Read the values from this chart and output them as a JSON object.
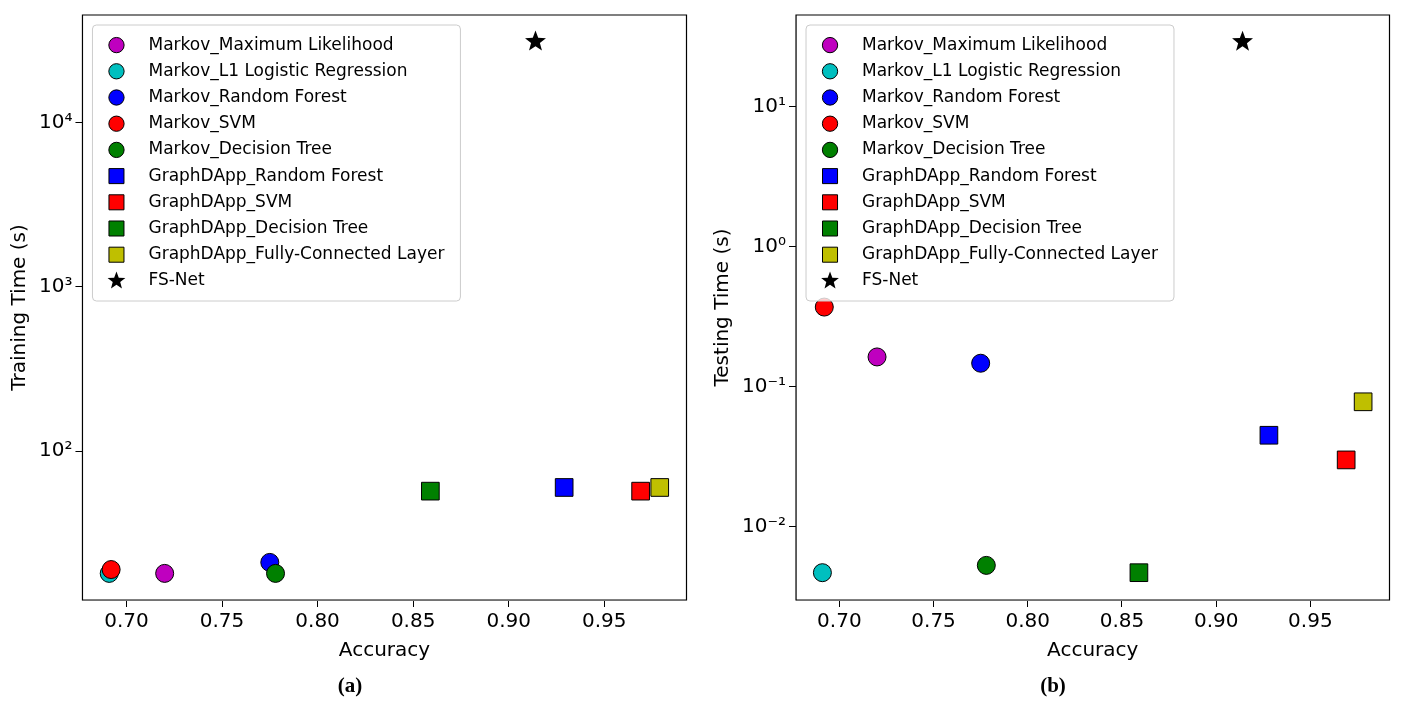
{
  "chart_data": [
    {
      "type": "scatter",
      "xlabel": "Accuracy",
      "ylabel": "Training Time (s)",
      "annotations": [
        "(a)"
      ],
      "log": "y",
      "grid": false,
      "legend": "top left",
      "xlim": [
        0.677,
        0.993
      ],
      "xticks": [
        {
          "value": 0.7,
          "label": "0.70"
        },
        {
          "value": 0.75,
          "label": "0.75"
        },
        {
          "value": 0.8,
          "label": "0.80"
        },
        {
          "value": 0.85,
          "label": "0.85"
        },
        {
          "value": 0.9,
          "label": "0.90"
        },
        {
          "value": 0.95,
          "label": "0.95"
        }
      ],
      "ylim": [
        12.4,
        45000
      ],
      "yticks": [
        {
          "value": 100,
          "label": "10²"
        },
        {
          "value": 1000,
          "label": "10³"
        },
        {
          "value": 10000,
          "label": "10⁴"
        }
      ],
      "series": [
        {
          "name": "Markov_Maximum Likelihood",
          "color": "#bf00bf",
          "marker": "circle",
          "x": [
            0.72
          ],
          "values": [
            18
          ]
        },
        {
          "name": "Markov_L1 Logistic Regression",
          "color": "#00bfbf",
          "marker": "circle",
          "x": [
            0.691
          ],
          "values": [
            18
          ]
        },
        {
          "name": "Markov_Random Forest",
          "color": "#0000ff",
          "marker": "circle",
          "x": [
            0.775
          ],
          "values": [
            21
          ]
        },
        {
          "name": "Markov_SVM",
          "color": "#ff0000",
          "marker": "circle",
          "x": [
            0.692
          ],
          "values": [
            19
          ]
        },
        {
          "name": "Markov_Decision Tree",
          "color": "#008000",
          "marker": "circle",
          "x": [
            0.778
          ],
          "values": [
            18
          ]
        },
        {
          "name": "GraphDApp_Random Forest",
          "color": "#0000ff",
          "marker": "square",
          "x": [
            0.929
          ],
          "values": [
            60
          ]
        },
        {
          "name": "GraphDApp_SVM",
          "color": "#ff0000",
          "marker": "square",
          "x": [
            0.969
          ],
          "values": [
            57
          ]
        },
        {
          "name": "GraphDApp_Decision Tree",
          "color": "#008000",
          "marker": "square",
          "x": [
            0.859
          ],
          "values": [
            57
          ]
        },
        {
          "name": "GraphDApp_Fully-Connected Layer",
          "color": "#bfbf00",
          "marker": "square",
          "x": [
            0.979
          ],
          "values": [
            60
          ]
        },
        {
          "name": "FS-Net",
          "color": "#000000",
          "marker": "star",
          "x": [
            0.914
          ],
          "values": [
            31000
          ]
        }
      ]
    },
    {
      "type": "scatter",
      "xlabel": "Accuracy",
      "ylabel": "Testing Time (s)",
      "annotations": [
        "(b)"
      ],
      "log": "y",
      "grid": false,
      "legend": "top left",
      "xlim": [
        0.677,
        0.992
      ],
      "xticks": [
        {
          "value": 0.7,
          "label": "0.70"
        },
        {
          "value": 0.75,
          "label": "0.75"
        },
        {
          "value": 0.8,
          "label": "0.80"
        },
        {
          "value": 0.85,
          "label": "0.85"
        },
        {
          "value": 0.9,
          "label": "0.90"
        },
        {
          "value": 0.95,
          "label": "0.95"
        }
      ],
      "ylim": [
        0.003,
        45
      ],
      "yticks": [
        {
          "value": 0.01,
          "label": "10⁻²"
        },
        {
          "value": 0.1,
          "label": "10⁻¹"
        },
        {
          "value": 1,
          "label": "10⁰"
        },
        {
          "value": 10,
          "label": "10¹"
        }
      ],
      "series": [
        {
          "name": "Markov_Maximum Likelihood",
          "color": "#bf00bf",
          "marker": "circle",
          "x": [
            0.72
          ],
          "values": [
            0.163
          ]
        },
        {
          "name": "Markov_L1 Logistic Regression",
          "color": "#00bfbf",
          "marker": "circle",
          "x": [
            0.691
          ],
          "values": [
            0.0047
          ]
        },
        {
          "name": "Markov_Random Forest",
          "color": "#0000ff",
          "marker": "circle",
          "x": [
            0.775
          ],
          "values": [
            0.147
          ]
        },
        {
          "name": "Markov_SVM",
          "color": "#ff0000",
          "marker": "circle",
          "x": [
            0.692
          ],
          "values": [
            0.37
          ]
        },
        {
          "name": "Markov_Decision Tree",
          "color": "#008000",
          "marker": "circle",
          "x": [
            0.778
          ],
          "values": [
            0.0053
          ]
        },
        {
          "name": "GraphDApp_Random Forest",
          "color": "#0000ff",
          "marker": "square",
          "x": [
            0.928
          ],
          "values": [
            0.045
          ]
        },
        {
          "name": "GraphDApp_SVM",
          "color": "#ff0000",
          "marker": "square",
          "x": [
            0.969
          ],
          "values": [
            0.03
          ]
        },
        {
          "name": "GraphDApp_Decision Tree",
          "color": "#008000",
          "marker": "square",
          "x": [
            0.859
          ],
          "values": [
            0.0047
          ]
        },
        {
          "name": "GraphDApp_Fully-Connected Layer",
          "color": "#bfbf00",
          "marker": "square",
          "x": [
            0.978
          ],
          "values": [
            0.078
          ]
        },
        {
          "name": "FS-Net",
          "color": "#000000",
          "marker": "star",
          "x": [
            0.914
          ],
          "values": [
            29
          ]
        }
      ]
    }
  ]
}
